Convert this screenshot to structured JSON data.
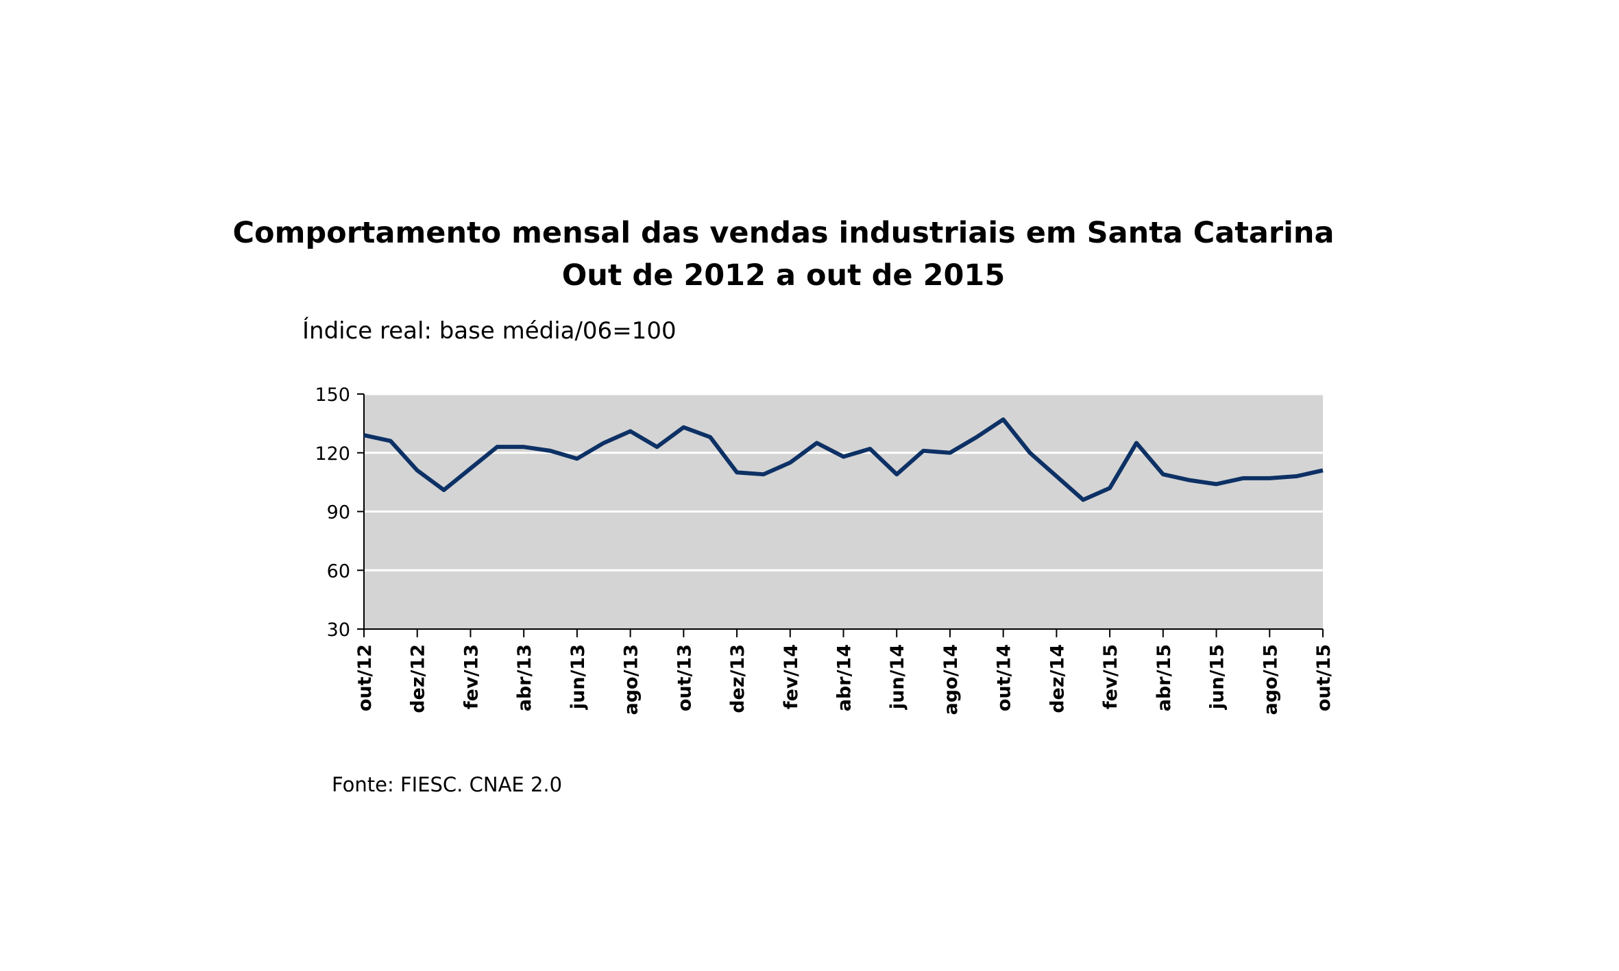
{
  "chart_data": {
    "type": "line",
    "title": [
      "Comportamento mensal das vendas industriais em Santa Catarina",
      "Out de 2012 a out de 2015"
    ],
    "subtitle": "Índice real: base média/06=100",
    "source": "Fonte: FIESC. CNAE 2.0",
    "categories": [
      "out/12",
      null,
      "dez/12",
      null,
      "fev/13",
      null,
      "abr/13",
      null,
      "jun/13",
      null,
      "ago/13",
      null,
      "out/13",
      null,
      "dez/13",
      null,
      "fev/14",
      null,
      "abr/14",
      null,
      "jun/14",
      null,
      "ago/14",
      null,
      "out/14",
      null,
      "dez/14",
      null,
      "fev/15",
      null,
      "abr/15",
      null,
      "jun/15",
      null,
      "ago/15",
      null,
      "out/15"
    ],
    "series": [
      {
        "color": "#0d3165",
        "values": [
          129,
          126,
          111,
          101,
          112,
          123,
          123,
          121,
          117,
          125,
          131,
          123,
          133,
          128,
          110,
          109,
          115,
          125,
          118,
          122,
          109,
          121,
          120,
          128,
          137,
          120,
          108,
          96,
          102,
          125,
          109,
          106,
          104,
          107,
          107,
          108,
          111
        ]
      }
    ],
    "ylim": [
      30,
      150
    ],
    "yticks": [
      30,
      60,
      90,
      120,
      150
    ],
    "grid": true,
    "plot_background": "#d4d4d4"
  }
}
